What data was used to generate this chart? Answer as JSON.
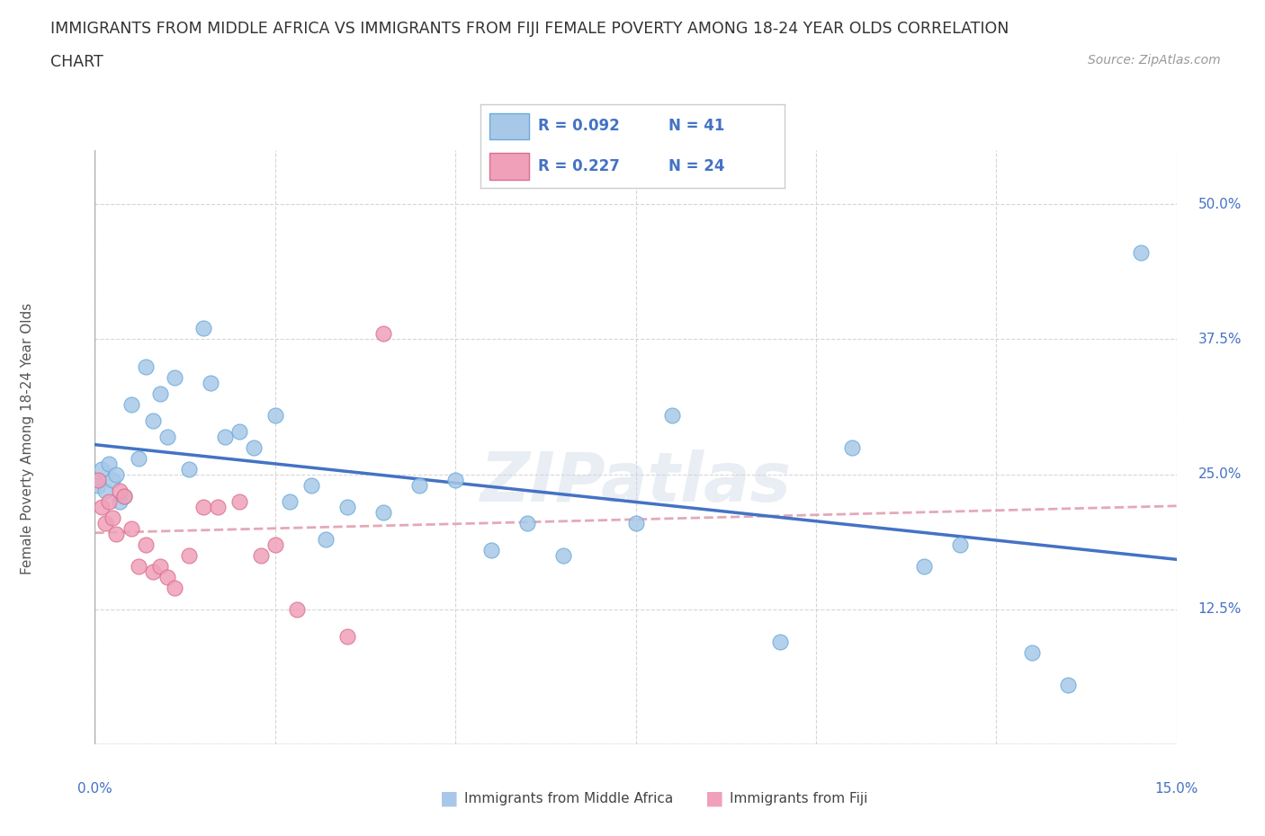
{
  "title_line1": "IMMIGRANTS FROM MIDDLE AFRICA VS IMMIGRANTS FROM FIJI FEMALE POVERTY AMONG 18-24 YEAR OLDS CORRELATION",
  "title_line2": "CHART",
  "source": "Source: ZipAtlas.com",
  "ylabel_label": "Female Poverty Among 18-24 Year Olds",
  "xmin": 0.0,
  "xmax": 15.0,
  "ymin": 0.0,
  "ymax": 55.0,
  "yticks": [
    0,
    12.5,
    25.0,
    37.5,
    50.0
  ],
  "xticks": [
    0,
    2.5,
    5.0,
    7.5,
    10.0,
    12.5,
    15.0
  ],
  "color_africa": "#a8c8e8",
  "color_fiji": "#f0a0b8",
  "color_africa_line": "#4472c4",
  "color_fiji_line": "#e8808a",
  "color_fiji_dash": "#e0a0b0",
  "watermark": "ZIPatlas",
  "background_color": "#ffffff",
  "grid_color": "#cccccc",
  "africa_scatter_x": [
    0.05,
    0.1,
    0.15,
    0.2,
    0.25,
    0.3,
    0.35,
    0.4,
    0.5,
    0.6,
    0.7,
    0.8,
    0.9,
    1.0,
    1.1,
    1.3,
    1.5,
    1.6,
    1.8,
    2.0,
    2.2,
    2.5,
    2.7,
    3.0,
    3.2,
    3.5,
    4.0,
    4.5,
    5.0,
    5.5,
    6.0,
    6.5,
    7.5,
    8.0,
    9.5,
    10.5,
    11.5,
    12.0,
    13.0,
    13.5,
    14.5
  ],
  "africa_scatter_y": [
    24.0,
    25.5,
    23.5,
    26.0,
    24.5,
    25.0,
    22.5,
    23.0,
    31.5,
    26.5,
    35.0,
    30.0,
    32.5,
    28.5,
    34.0,
    25.5,
    38.5,
    33.5,
    28.5,
    29.0,
    27.5,
    30.5,
    22.5,
    24.0,
    19.0,
    22.0,
    21.5,
    24.0,
    24.5,
    18.0,
    20.5,
    17.5,
    20.5,
    30.5,
    9.5,
    27.5,
    16.5,
    18.5,
    8.5,
    5.5,
    45.5
  ],
  "fiji_scatter_x": [
    0.05,
    0.1,
    0.15,
    0.2,
    0.25,
    0.3,
    0.35,
    0.4,
    0.5,
    0.6,
    0.7,
    0.8,
    0.9,
    1.0,
    1.1,
    1.3,
    1.5,
    1.7,
    2.0,
    2.3,
    2.5,
    2.8,
    3.5,
    4.0
  ],
  "fiji_scatter_y": [
    24.5,
    22.0,
    20.5,
    22.5,
    21.0,
    19.5,
    23.5,
    23.0,
    20.0,
    16.5,
    18.5,
    16.0,
    16.5,
    15.5,
    14.5,
    17.5,
    22.0,
    22.0,
    22.5,
    17.5,
    18.5,
    12.5,
    10.0,
    38.0
  ]
}
